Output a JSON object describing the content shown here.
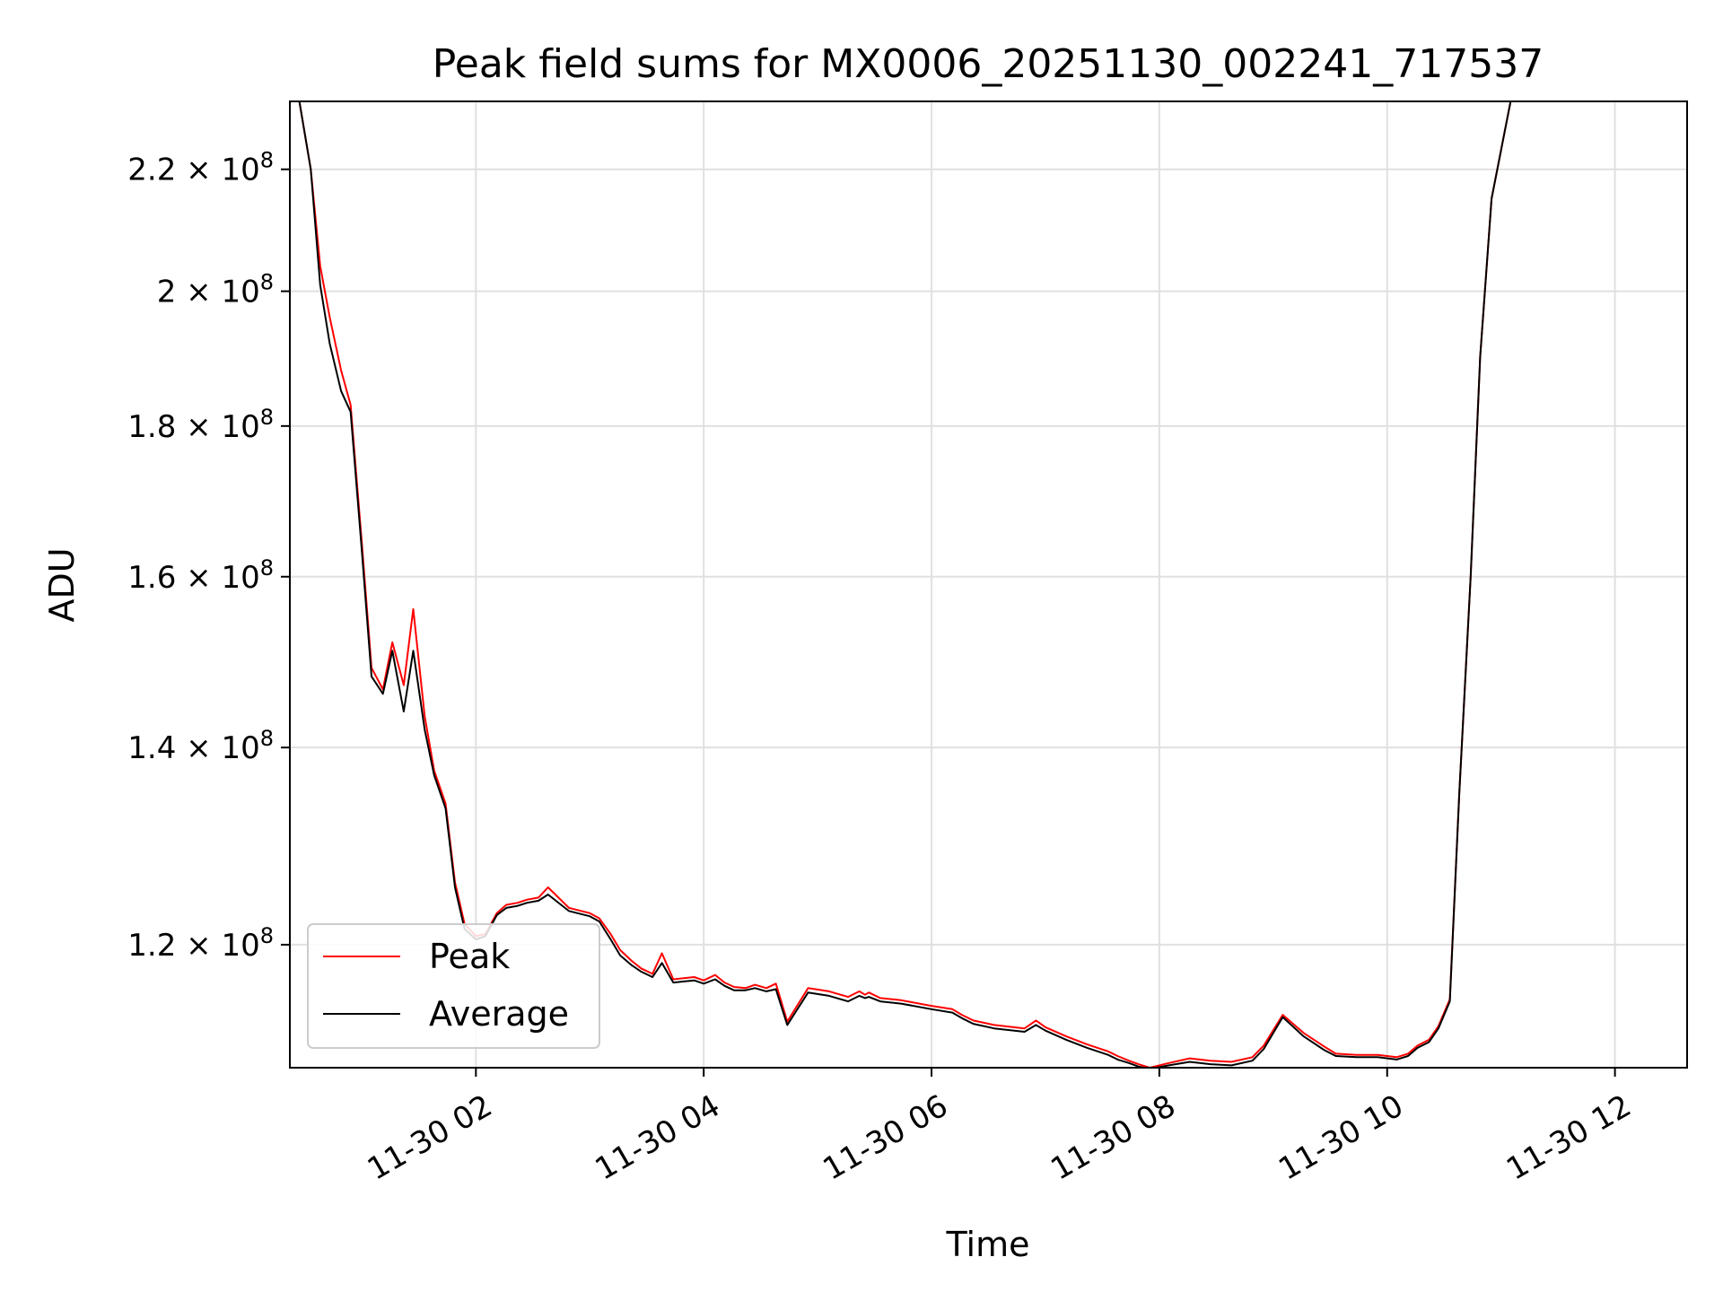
{
  "chart_data": {
    "type": "line",
    "title": "Peak field sums for MX0006_20251130_002241_717537",
    "xlabel": "Time",
    "ylabel": "ADU",
    "y_scale": "log",
    "x_range": [
      "2025-11-30 00:22",
      "2025-11-30 12:38"
    ],
    "ylim": [
      109000000,
      232000000
    ],
    "grid": true,
    "legend_position": "lower-left",
    "x_tick_labels": [
      "11-30 02",
      "11-30 04",
      "11-30 06",
      "11-30 08",
      "11-30 10",
      "11-30 12"
    ],
    "x_ticks": [
      "2025-11-30 02:00",
      "2025-11-30 04:00",
      "2025-11-30 06:00",
      "2025-11-30 08:00",
      "2025-11-30 10:00",
      "2025-11-30 12:00"
    ],
    "y_tick_labels": [
      {
        "value": 120000000,
        "mantissa": "1.2",
        "base": "10",
        "exp": "8"
      },
      {
        "value": 140000000,
        "mantissa": "1.4",
        "base": "10",
        "exp": "8"
      },
      {
        "value": 160000000,
        "mantissa": "1.6",
        "base": "10",
        "exp": "8"
      },
      {
        "value": 180000000,
        "mantissa": "1.8",
        "base": "10",
        "exp": "8"
      },
      {
        "value": 200000000,
        "mantissa": "2",
        "base": "10",
        "exp": "8"
      },
      {
        "value": 220000000,
        "mantissa": "2.2",
        "base": "10",
        "exp": "8"
      }
    ],
    "times_in": "2025-11-30",
    "series": [
      {
        "name": "Peak",
        "color": "#ff0000",
        "x": [
          "00:22",
          "00:27",
          "00:33",
          "00:38",
          "00:43",
          "00:49",
          "00:54",
          "01:00",
          "01:05",
          "01:11",
          "01:16",
          "01:22",
          "01:27",
          "01:33",
          "01:38",
          "01:44",
          "01:49",
          "01:54",
          "02:00",
          "02:05",
          "02:11",
          "02:16",
          "02:22",
          "02:27",
          "02:33",
          "02:38",
          "02:49",
          "03:00",
          "03:05",
          "03:11",
          "03:16",
          "03:22",
          "03:27",
          "03:33",
          "03:38",
          "03:44",
          "03:55",
          "04:00",
          "04:06",
          "04:11",
          "04:16",
          "04:22",
          "04:27",
          "04:33",
          "04:38",
          "04:44",
          "04:55",
          "05:06",
          "05:16",
          "05:22",
          "05:25",
          "05:27",
          "05:33",
          "05:44",
          "06:00",
          "06:11",
          "06:16",
          "06:22",
          "06:33",
          "06:49",
          "06:55",
          "07:00",
          "07:11",
          "07:22",
          "07:33",
          "07:38",
          "07:44",
          "07:49",
          "07:55",
          "08:05",
          "08:16",
          "08:27",
          "08:38",
          "08:49",
          "08:55",
          "09:05",
          "09:16",
          "09:27",
          "09:33",
          "09:44",
          "09:55",
          "10:05",
          "10:11",
          "10:16",
          "10:22",
          "10:27",
          "10:33",
          "10:38",
          "10:44",
          "10:49",
          "10:55",
          "11:05",
          "11:11",
          "11:16",
          "11:22",
          "11:33",
          "11:38",
          "11:44",
          "11:49",
          "11:55",
          "12:00",
          "12:03",
          "12:05",
          "12:08",
          "12:11",
          "12:14",
          "12:16",
          "12:19",
          "12:22",
          "12:24",
          "12:27",
          "12:30",
          "12:33",
          "12:38"
        ],
        "y": [
          232000000,
          232000000,
          220000000,
          204000000,
          196000000,
          188000000,
          183000000,
          164000000,
          149000000,
          146500000,
          152000000,
          147000000,
          156000000,
          143500000,
          137500000,
          134000000,
          126000000,
          122000000,
          120800000,
          121000000,
          123000000,
          123800000,
          124000000,
          124300000,
          124500000,
          125500000,
          123500000,
          123000000,
          122500000,
          121000000,
          119500000,
          118500000,
          117800000,
          117300000,
          119200000,
          116800000,
          117000000,
          116700000,
          117200000,
          116500000,
          116100000,
          116000000,
          116300000,
          116000000,
          116400000,
          113000000,
          116000000,
          115700000,
          115200000,
          115700000,
          115400000,
          115600000,
          115100000,
          114900000,
          114400000,
          114100000,
          113600000,
          113100000,
          112700000,
          112400000,
          113100000,
          112500000,
          111700000,
          111000000,
          110400000,
          110000000,
          109600000,
          109300000,
          109000000,
          109400000,
          109800000,
          109600000,
          109500000,
          109900000,
          110900000,
          113600000,
          112000000,
          110800000,
          110200000,
          110100000,
          110100000,
          109900000,
          110200000,
          110900000,
          111400000,
          112600000,
          115000000,
          135000000,
          160000000,
          190000000,
          215000000,
          232000000,
          232000000,
          232000000,
          232000000,
          232000000,
          232000000,
          232000000,
          232000000,
          232000000,
          232000000,
          232000000,
          232000000,
          232000000,
          232000000,
          232000000,
          232000000,
          232000000,
          232000000,
          232000000,
          232000000,
          232000000,
          232000000,
          232000000
        ]
      },
      {
        "name": "Average",
        "color": "#000000",
        "x": [
          "00:22",
          "00:27",
          "00:33",
          "00:38",
          "00:43",
          "00:49",
          "00:54",
          "01:00",
          "01:05",
          "01:11",
          "01:16",
          "01:22",
          "01:27",
          "01:33",
          "01:38",
          "01:44",
          "01:49",
          "01:54",
          "02:00",
          "02:05",
          "02:11",
          "02:16",
          "02:22",
          "02:27",
          "02:33",
          "02:38",
          "02:49",
          "03:00",
          "03:05",
          "03:11",
          "03:16",
          "03:22",
          "03:27",
          "03:33",
          "03:38",
          "03:44",
          "03:55",
          "04:00",
          "04:06",
          "04:11",
          "04:16",
          "04:22",
          "04:27",
          "04:33",
          "04:38",
          "04:44",
          "04:55",
          "05:06",
          "05:16",
          "05:22",
          "05:25",
          "05:27",
          "05:33",
          "05:44",
          "06:00",
          "06:11",
          "06:16",
          "06:22",
          "06:33",
          "06:49",
          "06:55",
          "07:00",
          "07:11",
          "07:22",
          "07:33",
          "07:38",
          "07:44",
          "07:49",
          "07:55",
          "08:05",
          "08:16",
          "08:27",
          "08:38",
          "08:49",
          "08:55",
          "09:05",
          "09:16",
          "09:27",
          "09:33",
          "09:44",
          "09:55",
          "10:05",
          "10:11",
          "10:16",
          "10:22",
          "10:27",
          "10:33",
          "10:38",
          "10:44",
          "10:49",
          "10:55",
          "11:05",
          "11:11",
          "11:16",
          "11:22",
          "11:33",
          "11:38",
          "11:44",
          "11:49",
          "11:55",
          "12:00",
          "12:03",
          "12:05",
          "12:08",
          "12:11",
          "12:14",
          "12:16",
          "12:19",
          "12:22",
          "12:24",
          "12:27",
          "12:30",
          "12:33",
          "12:38"
        ],
        "y": [
          232000000,
          232000000,
          220000000,
          201000000,
          192000000,
          185000000,
          182000000,
          163000000,
          148000000,
          146000000,
          151000000,
          144000000,
          151000000,
          142000000,
          137000000,
          133500000,
          125500000,
          121500000,
          120500000,
          120800000,
          122800000,
          123500000,
          123700000,
          124000000,
          124200000,
          124800000,
          123200000,
          122700000,
          122200000,
          120500000,
          119000000,
          118100000,
          117500000,
          117000000,
          118300000,
          116500000,
          116700000,
          116400000,
          116800000,
          116200000,
          115800000,
          115800000,
          116000000,
          115700000,
          115900000,
          112700000,
          115600000,
          115300000,
          114800000,
          115300000,
          115100000,
          115200000,
          114800000,
          114600000,
          114100000,
          113800000,
          113300000,
          112800000,
          112400000,
          112100000,
          112700000,
          112200000,
          111400000,
          110700000,
          110100000,
          109700000,
          109400000,
          109100000,
          108900000,
          109200000,
          109500000,
          109300000,
          109200000,
          109600000,
          110600000,
          113400000,
          111700000,
          110500000,
          110000000,
          109900000,
          109900000,
          109700000,
          110000000,
          110700000,
          111200000,
          112400000,
          114800000,
          135000000,
          160000000,
          190000000,
          215000000,
          232000000,
          232000000,
          232000000,
          232000000,
          232000000,
          232000000,
          232000000,
          232000000,
          232000000,
          232000000,
          232000000,
          232000000,
          232000000,
          232000000,
          232000000,
          232000000,
          232000000,
          232000000,
          232000000,
          232000000,
          232000000,
          232000000,
          232000000
        ]
      }
    ]
  }
}
